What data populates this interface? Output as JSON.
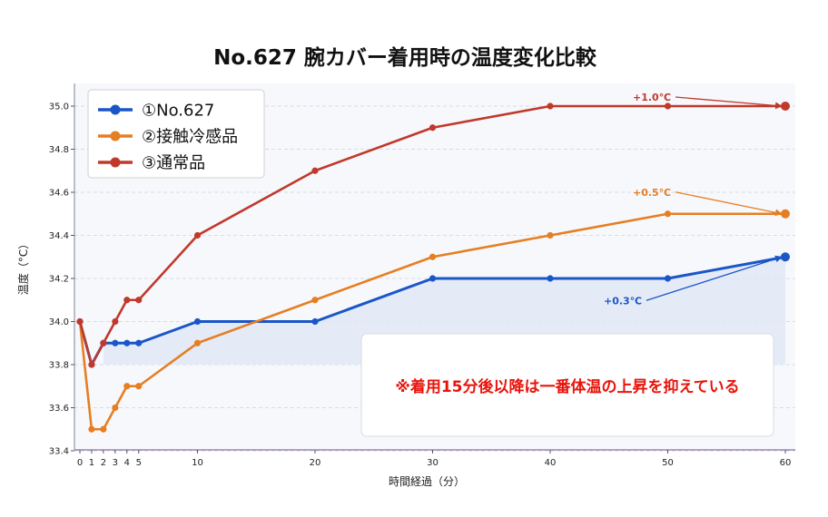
{
  "chart_data": {
    "type": "line",
    "title": "No.627 腕カバー着用時の温度変化比較",
    "xlabel": "時間経過（分）",
    "ylabel": "温度（°C）",
    "xlim": [
      0,
      60
    ],
    "ylim": [
      33.4,
      35.0
    ],
    "x_ticks": [
      0,
      1,
      2,
      3,
      4,
      5,
      10,
      20,
      30,
      40,
      50,
      60
    ],
    "y_ticks": [
      "33.4",
      "33.6",
      "33.8",
      "34.0",
      "34.2",
      "34.4",
      "34.6",
      "34.8",
      "35.0"
    ],
    "grid": "horizontal-dashed",
    "legend_position": "top-left",
    "x": [
      0,
      1,
      2,
      3,
      4,
      5,
      10,
      20,
      30,
      40,
      50,
      60
    ],
    "series": [
      {
        "name": "①No.627",
        "color": "#1a56c8",
        "values": [
          34.0,
          33.8,
          33.9,
          33.9,
          33.9,
          33.9,
          34.0,
          34.0,
          34.2,
          34.2,
          34.2,
          34.3
        ]
      },
      {
        "name": "②接触冷感品",
        "color": "#e67e22",
        "values": [
          34.0,
          33.5,
          33.5,
          33.6,
          33.7,
          33.7,
          33.9,
          34.1,
          34.3,
          34.4,
          34.5,
          34.5
        ]
      },
      {
        "name": "③通常品",
        "color": "#c0392b",
        "values": [
          34.0,
          33.8,
          33.9,
          34.0,
          34.1,
          34.1,
          34.4,
          34.7,
          34.9,
          35.0,
          35.0,
          35.0
        ]
      }
    ],
    "shaded_region": {
      "series": "①No.627",
      "from_y": 33.8,
      "x_from": 2,
      "color": "#dde7f5"
    },
    "annotations": [
      {
        "text": "+1.0℃",
        "color": "#c0392b",
        "points_to": {
          "x": 60,
          "y": 35.0
        }
      },
      {
        "text": "+0.5℃",
        "color": "#e67e22",
        "points_to": {
          "x": 60,
          "y": 34.5
        }
      },
      {
        "text": "+0.3℃",
        "color": "#1a56c8",
        "points_to": {
          "x": 60,
          "y": 34.3
        }
      }
    ],
    "note": "※着用15分後以降は一番体温の上昇を抑えている"
  }
}
